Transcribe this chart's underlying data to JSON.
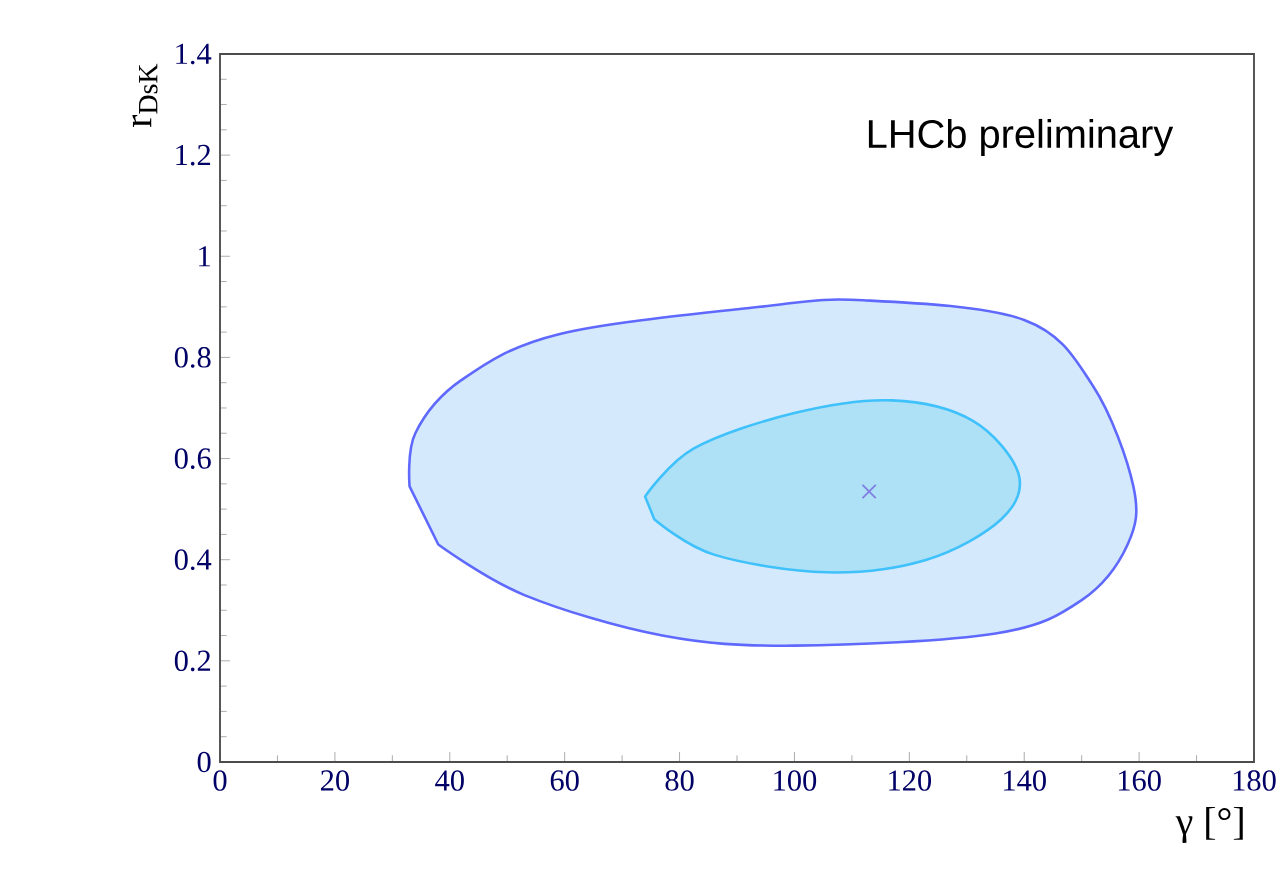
{
  "chart_data": {
    "type": "area",
    "xlabel": "γ [°]",
    "ylabel": "r$_{DsK}$",
    "annotations": [
      "LHCb preliminary"
    ],
    "xlim": [
      0,
      180
    ],
    "ylim": [
      0,
      1.4
    ],
    "xticks": [
      0,
      20,
      40,
      60,
      80,
      100,
      120,
      140,
      160,
      180
    ],
    "yticks": [
      0,
      0.2,
      0.4,
      0.6,
      0.8,
      1,
      1.2,
      1.4
    ],
    "series": [
      {
        "color": "#d4e9fb",
        "x": [
          33,
          34,
          42,
          59,
          94,
          112,
          140,
          152,
          159,
          158,
          150,
          135,
          100,
          77,
          53,
          38
        ],
        "values": [
          0.545,
          0.65,
          0.755,
          0.846,
          0.9,
          0.913,
          0.874,
          0.743,
          0.545,
          0.43,
          0.32,
          0.254,
          0.23,
          0.25,
          0.33,
          0.43
        ]
      },
      {
        "color": "#aee0f6",
        "x": [
          74,
          82.5,
          100,
          117,
          131,
          139,
          136,
          123,
          105.6,
          86,
          75.6
        ],
        "values": [
          0.525,
          0.62,
          0.69,
          0.715,
          0.675,
          0.57,
          0.48,
          0.4,
          0.375,
          0.41,
          0.48
        ]
      },
      {
        "type": "scatter",
        "color": "#8080e0",
        "marker": "cross",
        "x": [
          113
        ],
        "values": [
          0.535
        ]
      }
    ]
  }
}
